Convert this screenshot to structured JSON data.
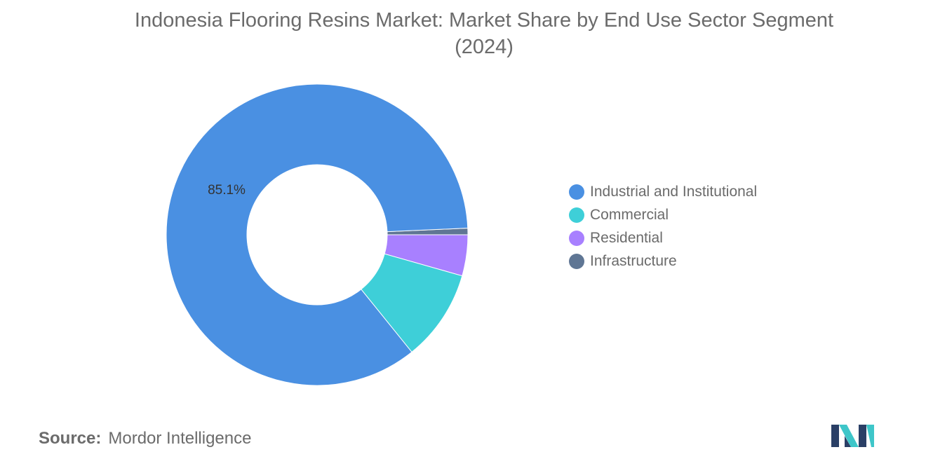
{
  "chart_data": {
    "type": "pie",
    "title": "Indonesia Flooring Resins Market: Market Share by End Use Sector Segment",
    "subtitle": "(2024)",
    "donut": true,
    "series": [
      {
        "name": "Industrial and Institutional",
        "value": 85.1,
        "label": "85.1%"
      },
      {
        "name": "Commercial",
        "value": 9.8,
        "label": ""
      },
      {
        "name": "Residential",
        "value": 4.4,
        "label": ""
      },
      {
        "name": "Infrastructure",
        "value": 0.7,
        "label": ""
      }
    ],
    "colors": [
      "#4a90e2",
      "#3ecfd8",
      "#a880ff",
      "#5f7694"
    ],
    "legend_position": "right"
  },
  "source": {
    "label": "Source:",
    "text": "Mordor Intelligence"
  },
  "logo": {
    "icon": "mordor-intelligence-logo-icon",
    "colors": [
      "#2a3f66",
      "#3ec6c9"
    ]
  }
}
